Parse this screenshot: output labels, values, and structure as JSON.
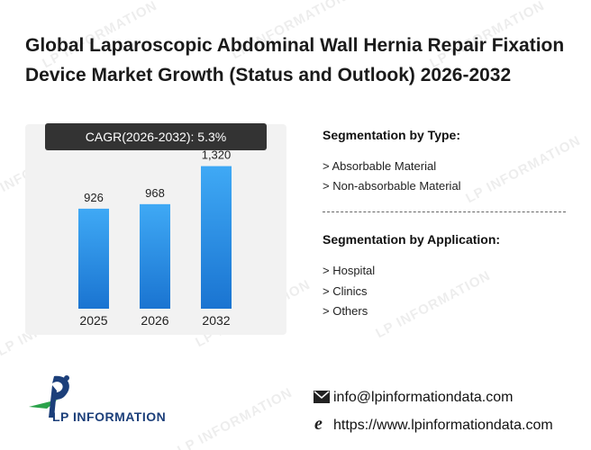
{
  "title": "Global Laparoscopic Abdominal Wall Hernia Repair Fixation Device Market Growth (Status and Outlook) 2026-2032",
  "cagr_label": "CAGR(2026-2032):",
  "cagr_value": "5.3%",
  "chart_data": {
    "type": "bar",
    "categories": [
      "2025",
      "2026",
      "2032"
    ],
    "values": [
      926,
      968,
      1320
    ],
    "value_labels": [
      "926",
      "968",
      "1,320"
    ],
    "title": "",
    "xlabel": "",
    "ylabel": "",
    "ylim": [
      0,
      1500
    ],
    "grid": false,
    "bar_color_top": "#3fa9f5",
    "bar_color_bottom": "#1a74d1"
  },
  "segmentation_type": {
    "heading": "Segmentation by Type:",
    "items": [
      "> Absorbable Material",
      "> Non-absorbable Material"
    ]
  },
  "segmentation_application": {
    "heading": "Segmentation by Application:",
    "items": [
      "> Hospital",
      "> Clinics",
      "> Others"
    ]
  },
  "brand": {
    "name": "LP INFORMATION",
    "watermark_text": "LP INFORMATION",
    "primary_color": "#1c3f7a",
    "accent_color": "#2aa24a"
  },
  "contact": {
    "email": "info@lpinformationdata.com",
    "website": "https://www.lpinformationdata.com"
  }
}
